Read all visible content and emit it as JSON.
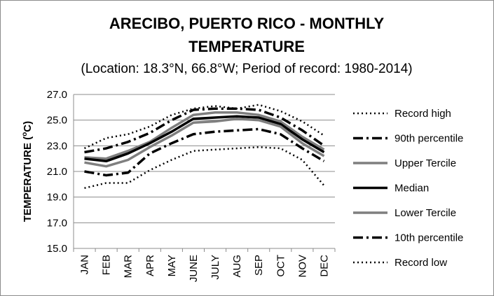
{
  "chart_data": {
    "type": "line",
    "title_line1": "ARECIBO, PUERTO RICO - MONTHLY",
    "title_line2": "TEMPERATURE",
    "subtitle": "(Location: 18.3°N, 66.8°W; Period of record: 1980-2014)",
    "ylabel_prefix": "TEMPERATURE (",
    "ylabel_sup": "o",
    "ylabel_suffix": "C)",
    "xlabel": "",
    "ylim": [
      15.0,
      27.0
    ],
    "yticks": [
      "15.0",
      "17.0",
      "19.0",
      "21.0",
      "23.0",
      "25.0",
      "27.0"
    ],
    "grid": "horizontal",
    "legend_position": "right",
    "categories": [
      "JAN",
      "FEB",
      "MAR",
      "APR",
      "MAY",
      "JUNE",
      "JULY",
      "AUG",
      "SEP",
      "OCT",
      "NOV",
      "DEC"
    ],
    "series": [
      {
        "name": "Record high",
        "style": "dotted",
        "color": "#000000",
        "values": [
          22.8,
          23.6,
          23.9,
          24.5,
          25.4,
          25.9,
          26.1,
          25.9,
          26.2,
          25.7,
          24.9,
          23.8
        ]
      },
      {
        "name": "90th percentile",
        "style": "dashdot",
        "color": "#000000",
        "values": [
          22.5,
          22.8,
          23.3,
          24.0,
          25.0,
          25.8,
          25.9,
          25.9,
          25.8,
          25.2,
          24.2,
          23.0
        ]
      },
      {
        "name": "Upper Tercile",
        "style": "solid",
        "color": "#7f7f7f",
        "values": [
          22.1,
          22.0,
          22.6,
          23.3,
          24.4,
          25.4,
          25.6,
          25.6,
          25.4,
          24.9,
          23.7,
          22.7
        ]
      },
      {
        "name": "Median",
        "style": "solid",
        "color": "#000000",
        "values": [
          22.0,
          21.8,
          22.4,
          23.2,
          24.1,
          25.1,
          25.2,
          25.3,
          25.2,
          24.7,
          23.5,
          22.5
        ]
      },
      {
        "name": "Lower Tercile",
        "style": "solid",
        "color": "#7f7f7f",
        "values": [
          21.7,
          21.4,
          21.9,
          22.9,
          23.8,
          24.8,
          24.9,
          25.1,
          25.0,
          24.5,
          23.2,
          22.2
        ]
      },
      {
        "name": "10th percentile",
        "style": "dashdot",
        "color": "#000000",
        "values": [
          21.0,
          20.7,
          20.9,
          22.4,
          23.2,
          23.9,
          24.1,
          24.2,
          24.3,
          23.9,
          22.8,
          21.8
        ]
      },
      {
        "name": "Record low",
        "style": "dotted",
        "color": "#000000",
        "values": [
          19.7,
          20.1,
          20.1,
          21.1,
          21.9,
          22.6,
          22.7,
          22.8,
          22.9,
          22.8,
          21.9,
          19.9
        ]
      }
    ]
  }
}
